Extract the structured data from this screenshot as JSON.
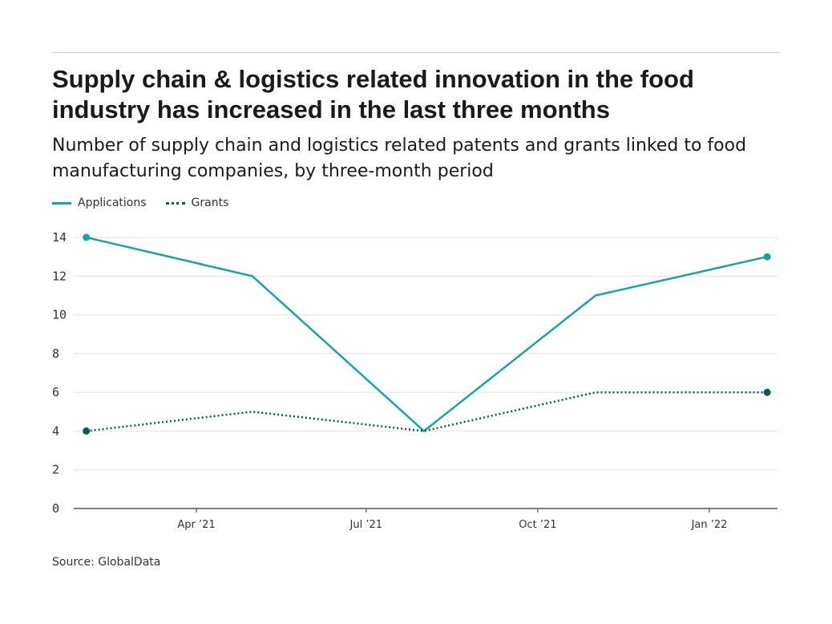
{
  "title": "Supply chain & logistics related innovation in the food industry has increased in the last three months",
  "subtitle": "Number of supply chain and logistics related patents and grants linked to food manufacturing companies, by three-month period",
  "source": "Source: GlobalData",
  "chart_data": {
    "type": "line",
    "x": [
      "2021-02-01",
      "2021-05-01",
      "2021-08-01",
      "2021-11-01",
      "2022-02-01"
    ],
    "series": [
      {
        "name": "Applications",
        "values": [
          14,
          12,
          4,
          11,
          13
        ],
        "color": "#1aa3a3",
        "style": "solid"
      },
      {
        "name": "Grants",
        "values": [
          4,
          5,
          4,
          6,
          6
        ],
        "color": "#0b5a5a",
        "style": "dotted"
      }
    ],
    "ylim": [
      0,
      14
    ],
    "yticks": [
      "0",
      "2",
      "4",
      "6",
      "8",
      "10",
      "12",
      "14"
    ],
    "xticks": [
      {
        "date": "2021-04-01",
        "label": "Apr ’21"
      },
      {
        "date": "2021-07-01",
        "label": "Jul ’21"
      },
      {
        "date": "2021-10-01",
        "label": "Oct ’21"
      },
      {
        "date": "2022-01-01",
        "label": "Jan ’22"
      }
    ],
    "grid": true,
    "legend": "top-left"
  }
}
